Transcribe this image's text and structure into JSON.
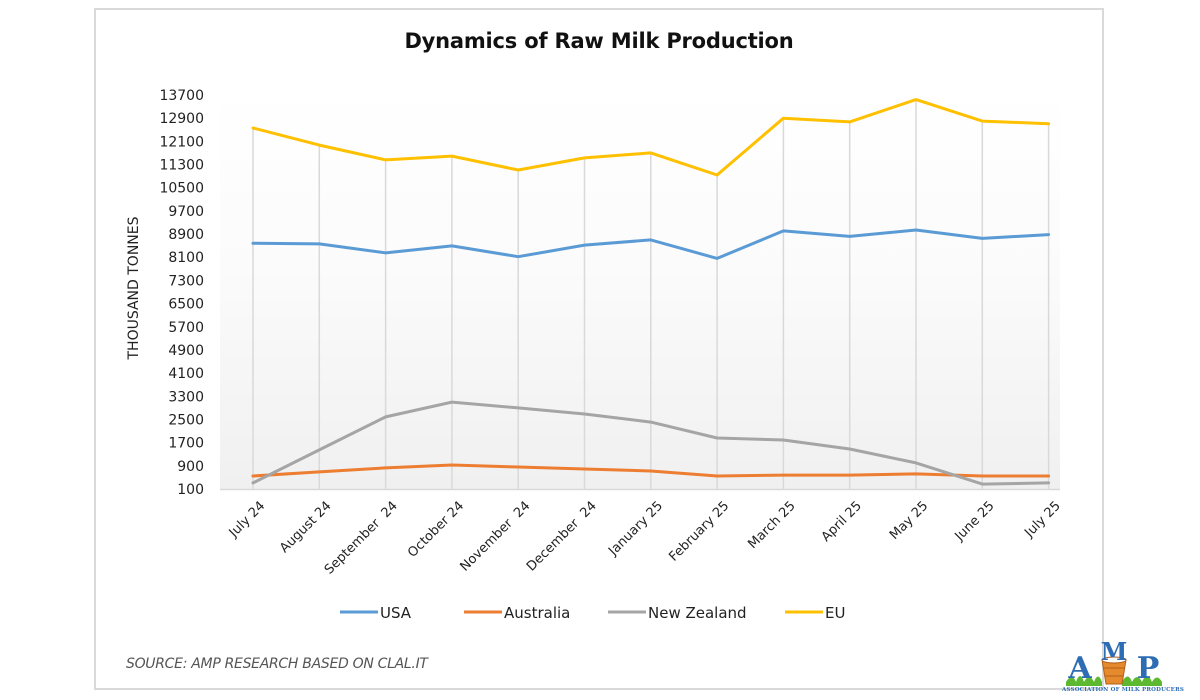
{
  "chart_data": {
    "type": "line",
    "title": "Dynamics of Raw Milk Production",
    "xlabel": "",
    "ylabel": "THOUSAND TONNES",
    "ylim": [
      100,
      13700
    ],
    "yticks": [
      100,
      900,
      1700,
      2500,
      3300,
      4100,
      4900,
      5700,
      6500,
      7300,
      8100,
      8900,
      9700,
      10500,
      11300,
      12100,
      12900,
      13700
    ],
    "ytick_labels": [
      "100",
      "900",
      "1700",
      "2500",
      "3300",
      "4100",
      "4900",
      "5700",
      "6500",
      "7300",
      "8100",
      "8900",
      "9700",
      "10500",
      "11300",
      "12100",
      "12900",
      "13700"
    ],
    "categories": [
      "July 24",
      "August 24",
      "September  24",
      "October 24",
      "November  24",
      "December  24",
      "January 25",
      "February 25",
      "March 25",
      "April 25",
      "May 25",
      "June 25",
      "July 25"
    ],
    "grid": "drop-lines",
    "legend_position": "bottom",
    "series": [
      {
        "name": "USA",
        "color": "#5b9bd5",
        "values": [
          8580,
          8560,
          8250,
          8490,
          8120,
          8520,
          8700,
          8060,
          9010,
          8820,
          9040,
          8750,
          8880
        ]
      },
      {
        "name": "Australia",
        "color": "#ed7d31",
        "values": [
          550,
          690,
          830,
          930,
          860,
          790,
          720,
          550,
          580,
          580,
          620,
          550,
          550
        ]
      },
      {
        "name": "New Zealand",
        "color": "#a5a5a5",
        "values": [
          310,
          1450,
          2590,
          3100,
          2900,
          2690,
          2410,
          1860,
          1790,
          1480,
          1000,
          270,
          310
        ]
      },
      {
        "name": "EU",
        "color": "#ffc000",
        "values": [
          12560,
          11970,
          11460,
          11590,
          11110,
          11530,
          11700,
          10940,
          12900,
          12770,
          13540,
          12800,
          12710
        ]
      }
    ]
  },
  "footer": {
    "source": "SOURCE: AMP RESEARCH BASED ON CLAL.IT"
  },
  "logo": {
    "letters": "AMP",
    "tagline": "ASSOCIATION OF MILK PRODUCERS",
    "icon": "milk-bucket-icon"
  }
}
